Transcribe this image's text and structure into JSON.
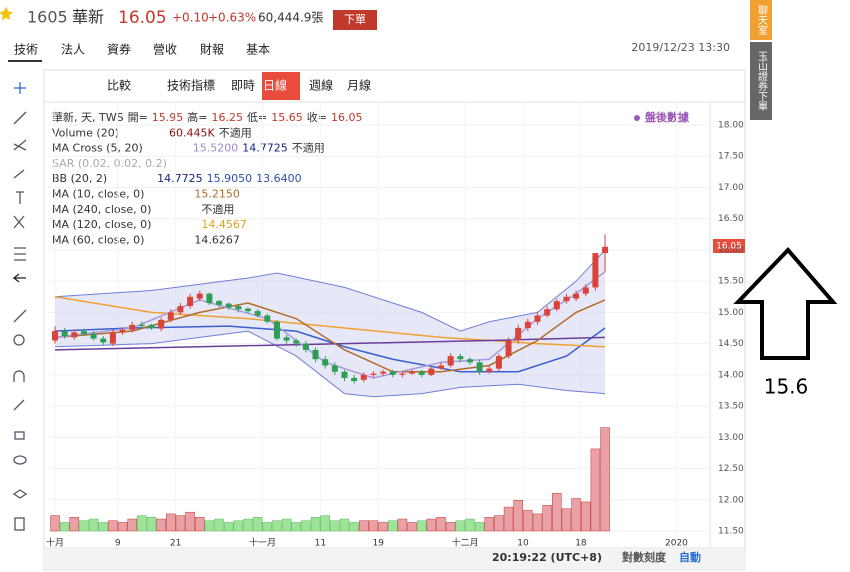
{
  "header": {
    "code": "1605",
    "name": "華新",
    "price": "16.05",
    "change": "+0.10",
    "pct": "+0.63%",
    "volume": "60,444.9張",
    "order": "下單"
  },
  "tabs": [
    "技術",
    "法人",
    "資券",
    "營收",
    "財報",
    "基本"
  ],
  "datetime": "2019/12/23 13:30",
  "sidebar": [
    "聊天室",
    "玉山證券下單"
  ],
  "toolbar": [
    "比較",
    "技術指標",
    "即時",
    "日線",
    "週線",
    "月線"
  ],
  "legend": [
    {
      "items": [
        "華新, 天, TWS",
        "開=",
        "15.95",
        "高=",
        "16.25",
        "低=",
        "15.65",
        "收=",
        "16.05"
      ],
      "colors": [
        "#333",
        "#333",
        "#c0392b",
        "#333",
        "#c0392b",
        "#333",
        "#c0392b",
        "#333",
        "#c0392b"
      ]
    },
    {
      "items": [
        "Volume (20)",
        "60.445K",
        "不適用"
      ],
      "colors": [
        "#333",
        "#8b1010",
        "#333"
      ]
    },
    {
      "items": [
        "MA Cross (5, 20)",
        "15.5200",
        "14.7725",
        "不適用"
      ],
      "colors": [
        "#333",
        "#9c8ccc",
        "#1a237e",
        "#333"
      ]
    },
    {
      "items": [
        "SAR (0.02, 0.02, 0.2)"
      ],
      "colors": [
        "#aaa"
      ]
    },
    {
      "items": [
        "BB (20, 2)",
        "14.7725",
        "15.9050",
        "13.6400"
      ],
      "colors": [
        "#333",
        "#1a237e",
        "#2c4fa8",
        "#2c4fa8"
      ]
    },
    {
      "items": [
        "MA (10, close, 0)",
        "15.2150"
      ],
      "colors": [
        "#333",
        "#b36b2c"
      ]
    },
    {
      "items": [
        "MA (240, close, 0)",
        "不適用"
      ],
      "colors": [
        "#333",
        "#333"
      ]
    },
    {
      "items": [
        "MA (120, close, 0)",
        "14.4567"
      ],
      "colors": [
        "#333",
        "#e0a020"
      ]
    },
    {
      "items": [
        "MA (60, close, 0)",
        "14.6267"
      ],
      "colors": [
        "#333",
        "#333"
      ]
    }
  ],
  "after_hours": "盤後數據",
  "status": {
    "time": "20:19:22 (UTC+8)",
    "log": "對數刻度",
    "auto": "自動"
  },
  "annotation": "15.6",
  "chart": {
    "type": "candlestick",
    "last_label": "16.05",
    "ylim": [
      11.5,
      18
    ],
    "vlim": [
      0,
      62
    ],
    "yticks": [
      {
        "value": 18,
        "label": "18.00"
      },
      {
        "value": 17.5,
        "label": "17.50"
      },
      {
        "value": 17,
        "label": "17.00"
      },
      {
        "value": 16.5,
        "label": "16.50"
      },
      {
        "value": 16,
        "label": "16.00"
      },
      {
        "value": 15.5,
        "label": "15.50"
      },
      {
        "value": 15,
        "label": "15.00"
      },
      {
        "value": 14.5,
        "label": "14.50"
      },
      {
        "value": 14,
        "label": "14.00"
      },
      {
        "value": 13.5,
        "label": "13.50"
      },
      {
        "value": 13,
        "label": "13.00"
      },
      {
        "value": 12.5,
        "label": "12.50"
      },
      {
        "value": 12,
        "label": "12.00"
      },
      {
        "value": 11.5,
        "label": "11.50"
      }
    ],
    "xticks": [
      {
        "value": 0,
        "label": "十月"
      },
      {
        "value": 6.5,
        "label": "9"
      },
      {
        "value": 12.5,
        "label": "21"
      },
      {
        "value": 21.5,
        "label": "十一月"
      },
      {
        "value": 27.5,
        "label": "11"
      },
      {
        "value": 33.5,
        "label": "19"
      },
      {
        "value": 42.5,
        "label": "十二月"
      },
      {
        "value": 48.5,
        "label": "10"
      },
      {
        "value": 54.5,
        "label": "18"
      },
      {
        "value": 64.4,
        "label": "2020"
      }
    ],
    "open": [
      14.55,
      14.7,
      14.6,
      14.7,
      14.66,
      14.58,
      14.5,
      14.68,
      14.72,
      14.8,
      14.8,
      14.74,
      14.88,
      15.0,
      15.1,
      15.22,
      15.3,
      15.18,
      15.14,
      15.1,
      15.06,
      15.02,
      14.95,
      14.85,
      14.6,
      14.55,
      14.5,
      14.4,
      14.25,
      14.15,
      14.05,
      13.95,
      13.92,
      14.0,
      14.02,
      14.05,
      14.0,
      14.02,
      14.05,
      14.0,
      14.1,
      14.15,
      14.3,
      14.25,
      14.2,
      14.05,
      14.1,
      14.3,
      14.55,
      14.75,
      14.85,
      14.95,
      15.05,
      15.18,
      15.22,
      15.3,
      15.4,
      15.95
    ],
    "high": [
      14.78,
      14.75,
      14.72,
      14.74,
      14.7,
      14.62,
      14.72,
      14.76,
      14.85,
      14.85,
      14.82,
      14.92,
      15.05,
      15.15,
      15.3,
      15.35,
      15.32,
      15.2,
      15.16,
      15.12,
      15.08,
      15.05,
      14.98,
      14.88,
      14.64,
      14.58,
      14.54,
      14.44,
      14.3,
      14.2,
      14.08,
      14.0,
      14.04,
      14.06,
      14.08,
      14.08,
      14.06,
      14.08,
      14.08,
      14.14,
      14.2,
      14.35,
      14.34,
      14.28,
      14.24,
      14.14,
      14.34,
      14.6,
      14.8,
      14.9,
      15.0,
      15.1,
      15.22,
      15.3,
      15.35,
      15.45,
      15.95,
      16.25
    ],
    "low": [
      14.5,
      14.58,
      14.56,
      14.62,
      14.55,
      14.48,
      14.46,
      14.64,
      14.68,
      14.74,
      14.72,
      14.7,
      14.84,
      14.96,
      15.06,
      15.18,
      15.12,
      15.08,
      15.04,
      15.0,
      14.98,
      14.92,
      14.82,
      14.55,
      14.5,
      14.45,
      14.36,
      14.2,
      14.1,
      14.0,
      13.9,
      13.86,
      13.88,
      13.96,
      13.98,
      13.96,
      13.96,
      14.0,
      13.96,
      13.98,
      14.08,
      14.12,
      14.2,
      14.16,
      14.0,
      14.02,
      14.06,
      14.26,
      14.5,
      14.7,
      14.8,
      14.92,
      15.02,
      15.14,
      15.18,
      15.26,
      15.35,
      15.65
    ],
    "close": [
      14.7,
      14.62,
      14.68,
      14.65,
      14.58,
      14.52,
      14.68,
      14.72,
      14.8,
      14.78,
      14.75,
      14.88,
      15.0,
      15.1,
      15.25,
      15.3,
      15.15,
      15.12,
      15.08,
      15.05,
      15.02,
      14.95,
      14.85,
      14.58,
      14.55,
      14.5,
      14.4,
      14.25,
      14.15,
      14.05,
      13.95,
      13.9,
      14.0,
      14.02,
      14.05,
      14.0,
      14.02,
      14.05,
      14.0,
      14.1,
      14.15,
      14.3,
      14.25,
      14.2,
      14.05,
      14.1,
      14.3,
      14.55,
      14.75,
      14.85,
      14.95,
      15.05,
      15.18,
      15.25,
      15.3,
      15.4,
      15.95,
      16.05
    ],
    "volume": [
      9,
      5,
      8,
      6,
      7,
      5,
      6,
      5,
      7,
      9,
      8,
      7,
      10,
      9,
      11,
      8,
      6,
      7,
      5,
      6,
      7,
      8,
      5,
      6,
      7,
      5,
      6,
      8,
      9,
      6,
      7,
      5,
      6,
      6,
      5,
      6,
      7,
      5,
      6,
      7,
      8,
      5,
      6,
      7,
      5,
      8,
      9,
      14,
      18,
      12,
      10,
      15,
      22,
      13,
      19,
      17,
      48,
      60.445
    ],
    "bands": {
      "color": "#c8cdf0",
      "stroke": "#6f7fd9",
      "upper": {
        "x": [
          0,
          10,
          20,
          23,
          30,
          38,
          42,
          45,
          50,
          54,
          57
        ],
        "values": [
          15.25,
          15.35,
          15.55,
          15.63,
          15.4,
          15.0,
          14.7,
          14.85,
          15.0,
          15.5,
          16.0
        ]
      },
      "lower": {
        "x": [
          0,
          10,
          20,
          25,
          30,
          33,
          38,
          42,
          48,
          53,
          57
        ],
        "values": [
          14.45,
          14.5,
          14.7,
          14.3,
          13.7,
          13.65,
          13.7,
          13.8,
          13.85,
          13.75,
          13.7
        ]
      }
    },
    "lines": [
      {
        "color": "#3a5fcd",
        "x": [
          0,
          8,
          18,
          25,
          30,
          35,
          42,
          48,
          53,
          57
        ],
        "values": [
          14.7,
          14.75,
          14.78,
          14.7,
          14.45,
          14.25,
          14.05,
          14.05,
          14.3,
          14.75
        ]
      },
      {
        "color": "#f0a030",
        "x": [
          0,
          10,
          20,
          30,
          40,
          50,
          57
        ],
        "values": [
          15.25,
          15.0,
          14.9,
          14.75,
          14.6,
          14.5,
          14.45
        ]
      },
      {
        "color": "#6a3d9a",
        "x": [
          0,
          15,
          30,
          45,
          57
        ],
        "values": [
          14.4,
          14.45,
          14.5,
          14.55,
          14.6
        ]
      },
      {
        "color": "#b36b2c",
        "x": [
          0,
          8,
          15,
          20,
          25,
          30,
          35,
          40,
          45,
          50,
          54,
          57
        ],
        "values": [
          14.6,
          14.7,
          15.0,
          15.15,
          14.9,
          14.4,
          14.05,
          14.05,
          14.15,
          14.55,
          15.0,
          15.2
        ]
      },
      {
        "color": "#a89adc",
        "x": [
          0,
          8,
          15,
          22,
          28,
          33,
          40,
          45,
          50,
          54,
          57
        ],
        "values": [
          14.6,
          14.75,
          15.2,
          14.9,
          14.2,
          13.95,
          14.2,
          14.25,
          14.9,
          15.3,
          15.65
        ]
      }
    ]
  }
}
